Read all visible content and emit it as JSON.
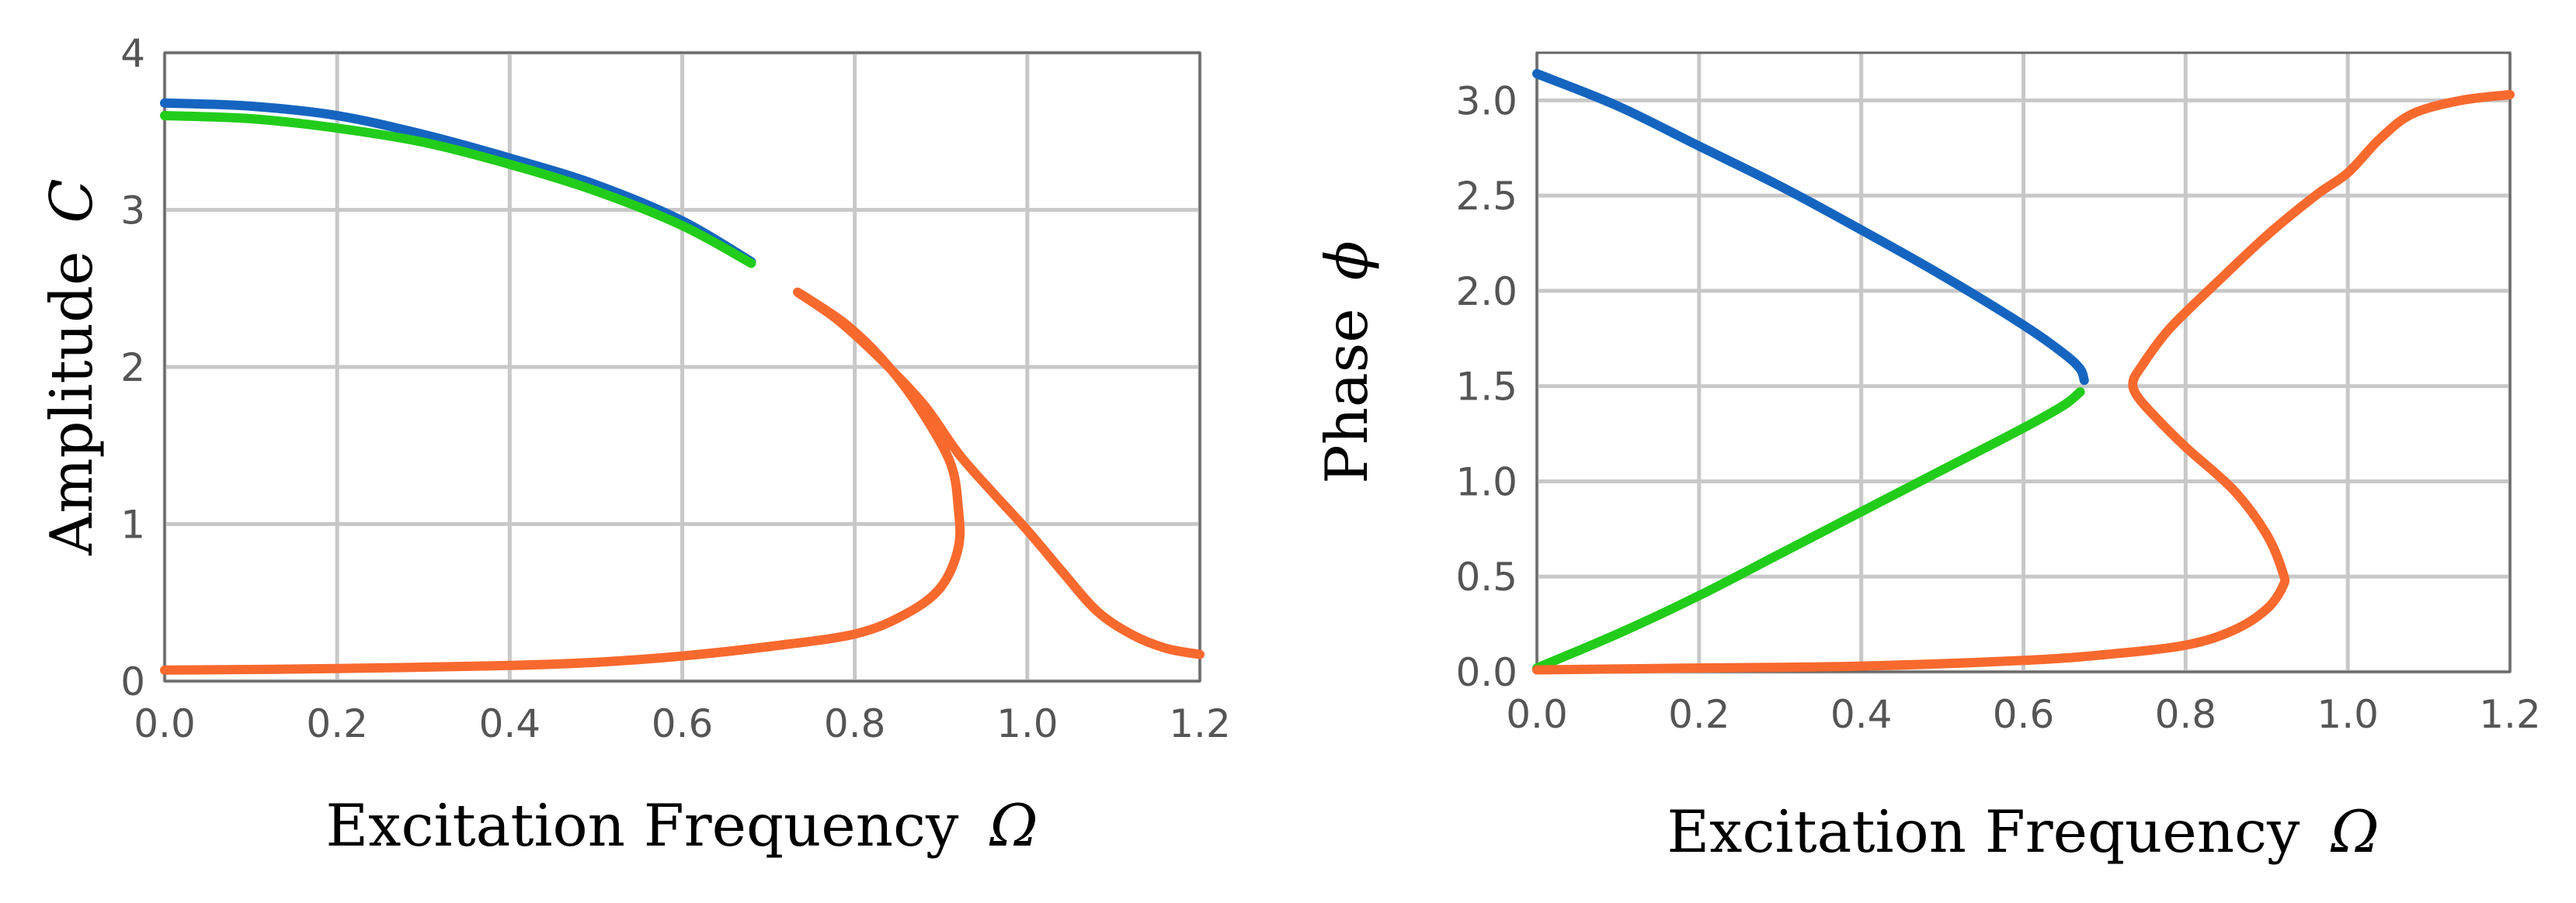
{
  "chart_data": [
    {
      "type": "line",
      "panel": "left",
      "title": "",
      "xlabel": "Excitation Frequency",
      "xlabel_symbol": "Ω",
      "ylabel": "Amplitude",
      "ylabel_symbol": "C",
      "xlim": [
        0,
        1.2
      ],
      "ylim": [
        0,
        4
      ],
      "xticks": [
        0,
        0.2,
        0.4,
        0.6,
        0.8,
        1.0,
        1.2
      ],
      "xtick_labels": [
        "0.0",
        "0.2",
        "0.4",
        "0.6",
        "0.8",
        "1.0",
        "1.2"
      ],
      "yticks": [
        0,
        1,
        2,
        3,
        4
      ],
      "ytick_labels": [
        "0",
        "1",
        "2",
        "3",
        "4"
      ],
      "grid": true,
      "series": [
        {
          "name": "blue branch",
          "color": "#1565C0",
          "points": [
            [
              0,
              3.68
            ],
            [
              0.1,
              3.66
            ],
            [
              0.2,
              3.6
            ],
            [
              0.3,
              3.48
            ],
            [
              0.4,
              3.33
            ],
            [
              0.5,
              3.16
            ],
            [
              0.6,
              2.93
            ],
            [
              0.68,
              2.67
            ]
          ]
        },
        {
          "name": "green branch",
          "color": "#22CC1A",
          "points": [
            [
              0,
              3.6
            ],
            [
              0.1,
              3.58
            ],
            [
              0.2,
              3.52
            ],
            [
              0.3,
              3.43
            ],
            [
              0.4,
              3.29
            ],
            [
              0.5,
              3.12
            ],
            [
              0.6,
              2.9
            ],
            [
              0.68,
              2.66
            ]
          ]
        },
        {
          "name": "orange branch",
          "color": "#F8692E",
          "points": [
            [
              0,
              0.07
            ],
            [
              0.2,
              0.08
            ],
            [
              0.4,
              0.1
            ],
            [
              0.5,
              0.12
            ],
            [
              0.6,
              0.16
            ],
            [
              0.7,
              0.22
            ],
            [
              0.8,
              0.3
            ],
            [
              0.86,
              0.43
            ],
            [
              0.9,
              0.6
            ],
            [
              0.92,
              0.85
            ],
            [
              0.92,
              1.1
            ],
            [
              0.91,
              1.4
            ],
            [
              0.87,
              1.78
            ],
            [
              0.83,
              2.06
            ],
            [
              0.79,
              2.27
            ],
            [
              0.75,
              2.42
            ],
            [
              0.735,
              2.47
            ],
            [
              0.78,
              2.3
            ],
            [
              0.83,
              2.05
            ],
            [
              0.88,
              1.76
            ],
            [
              0.92,
              1.45
            ],
            [
              0.96,
              1.2
            ],
            [
              1.0,
              0.96
            ],
            [
              1.04,
              0.7
            ],
            [
              1.08,
              0.45
            ],
            [
              1.12,
              0.3
            ],
            [
              1.16,
              0.21
            ],
            [
              1.2,
              0.17
            ]
          ]
        }
      ]
    },
    {
      "type": "line",
      "panel": "right",
      "title": "",
      "xlabel": "Excitation Frequency",
      "xlabel_symbol": "Ω",
      "ylabel": "Phase",
      "ylabel_symbol": "ϕ",
      "xlim": [
        0,
        1.2
      ],
      "ylim": [
        0,
        3.25
      ],
      "xticks": [
        0,
        0.2,
        0.4,
        0.6,
        0.8,
        1.0,
        1.2
      ],
      "xtick_labels": [
        "0.0",
        "0.2",
        "0.4",
        "0.6",
        "0.8",
        "1.0",
        "1.2"
      ],
      "yticks": [
        0,
        0.5,
        1.0,
        1.5,
        2.0,
        2.5,
        3.0
      ],
      "ytick_labels": [
        "0.0",
        "0.5",
        "1.0",
        "1.5",
        "2.0",
        "2.5",
        "3.0"
      ],
      "grid": true,
      "series": [
        {
          "name": "blue branch",
          "color": "#1565C0",
          "points": [
            [
              0,
              3.14
            ],
            [
              0.1,
              2.97
            ],
            [
              0.2,
              2.76
            ],
            [
              0.3,
              2.55
            ],
            [
              0.4,
              2.32
            ],
            [
              0.5,
              2.08
            ],
            [
              0.6,
              1.82
            ],
            [
              0.65,
              1.67
            ],
            [
              0.67,
              1.59
            ],
            [
              0.675,
              1.53
            ]
          ]
        },
        {
          "name": "green branch",
          "color": "#22CC1A",
          "points": [
            [
              0,
              0.02
            ],
            [
              0.1,
              0.2
            ],
            [
              0.2,
              0.4
            ],
            [
              0.3,
              0.62
            ],
            [
              0.4,
              0.84
            ],
            [
              0.5,
              1.06
            ],
            [
              0.6,
              1.28
            ],
            [
              0.65,
              1.4
            ],
            [
              0.67,
              1.47
            ]
          ]
        },
        {
          "name": "orange branch",
          "color": "#F8692E",
          "points": [
            [
              0,
              0.01
            ],
            [
              0.2,
              0.02
            ],
            [
              0.4,
              0.03
            ],
            [
              0.6,
              0.06
            ],
            [
              0.7,
              0.09
            ],
            [
              0.8,
              0.14
            ],
            [
              0.86,
              0.22
            ],
            [
              0.9,
              0.33
            ],
            [
              0.92,
              0.45
            ],
            [
              0.92,
              0.52
            ],
            [
              0.9,
              0.72
            ],
            [
              0.86,
              0.95
            ],
            [
              0.8,
              1.18
            ],
            [
              0.76,
              1.35
            ],
            [
              0.74,
              1.45
            ],
            [
              0.735,
              1.52
            ],
            [
              0.745,
              1.6
            ],
            [
              0.78,
              1.8
            ],
            [
              0.84,
              2.05
            ],
            [
              0.9,
              2.29
            ],
            [
              0.96,
              2.5
            ],
            [
              1.0,
              2.62
            ],
            [
              1.04,
              2.8
            ],
            [
              1.08,
              2.93
            ],
            [
              1.14,
              3.0
            ],
            [
              1.2,
              3.03
            ]
          ]
        }
      ]
    }
  ]
}
